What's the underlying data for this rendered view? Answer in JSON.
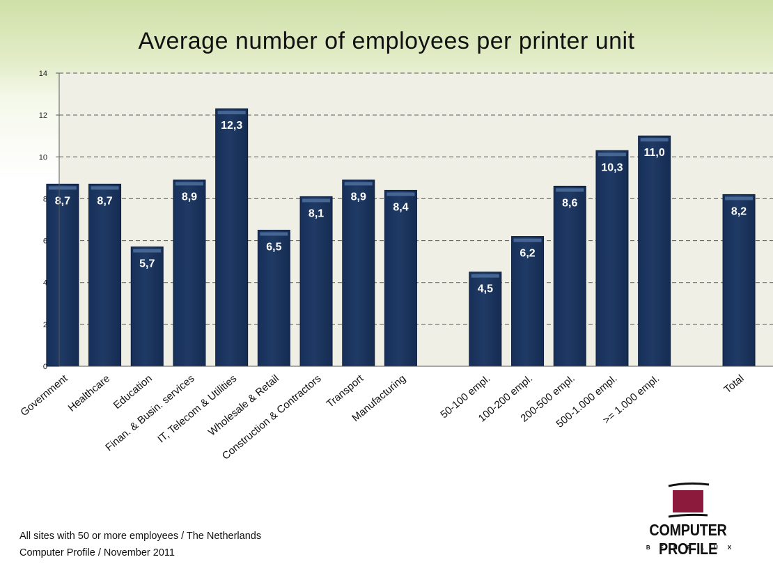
{
  "chart_data": {
    "type": "bar",
    "title": "Average number of employees per printer unit",
    "categories": [
      "Government",
      "Healthcare",
      "Education",
      "Finan. & Busin. services",
      "IT, Telecom & Utilities",
      "Wholesale & Retail",
      "Construction & Contractors",
      "Transport",
      "Manufacturing",
      "",
      "50-100 empl.",
      "100-200 empl.",
      "200-500 empl.",
      "500-1.000 empl.",
      ">= 1.000 empl.",
      "",
      "Total"
    ],
    "values": [
      8.7,
      8.7,
      5.7,
      8.9,
      12.3,
      6.5,
      8.1,
      8.9,
      8.4,
      null,
      4.5,
      6.2,
      8.6,
      10.3,
      11.0,
      null,
      8.2
    ],
    "data_labels": [
      "8,7",
      "8,7",
      "5,7",
      "8,9",
      "12,3",
      "6,5",
      "8,1",
      "8,9",
      "8,4",
      "",
      "4,5",
      "6,2",
      "8,6",
      "10,3",
      "11,0",
      "",
      "8,2"
    ],
    "yticks": [
      "0",
      "2",
      "4",
      "6",
      "8",
      "10",
      "12",
      "14"
    ],
    "ylim": [
      0,
      14
    ],
    "xlabel": "",
    "ylabel": "",
    "grid": true,
    "legend": "none",
    "colors": {
      "bar": "#1f3a64",
      "bar_highlight": "#4e6e9e",
      "plot_bg": "#efefe6",
      "grid": "#555555",
      "label_text": "#ffffff"
    }
  },
  "footnotes": {
    "line1": "All sites with 50 or more employees / The Netherlands",
    "line2": "Computer Profile / November 2011"
  },
  "logo": {
    "name": "COMPUTER PROFILE",
    "sub": "BENELUX",
    "color": "#8b1a3c"
  }
}
